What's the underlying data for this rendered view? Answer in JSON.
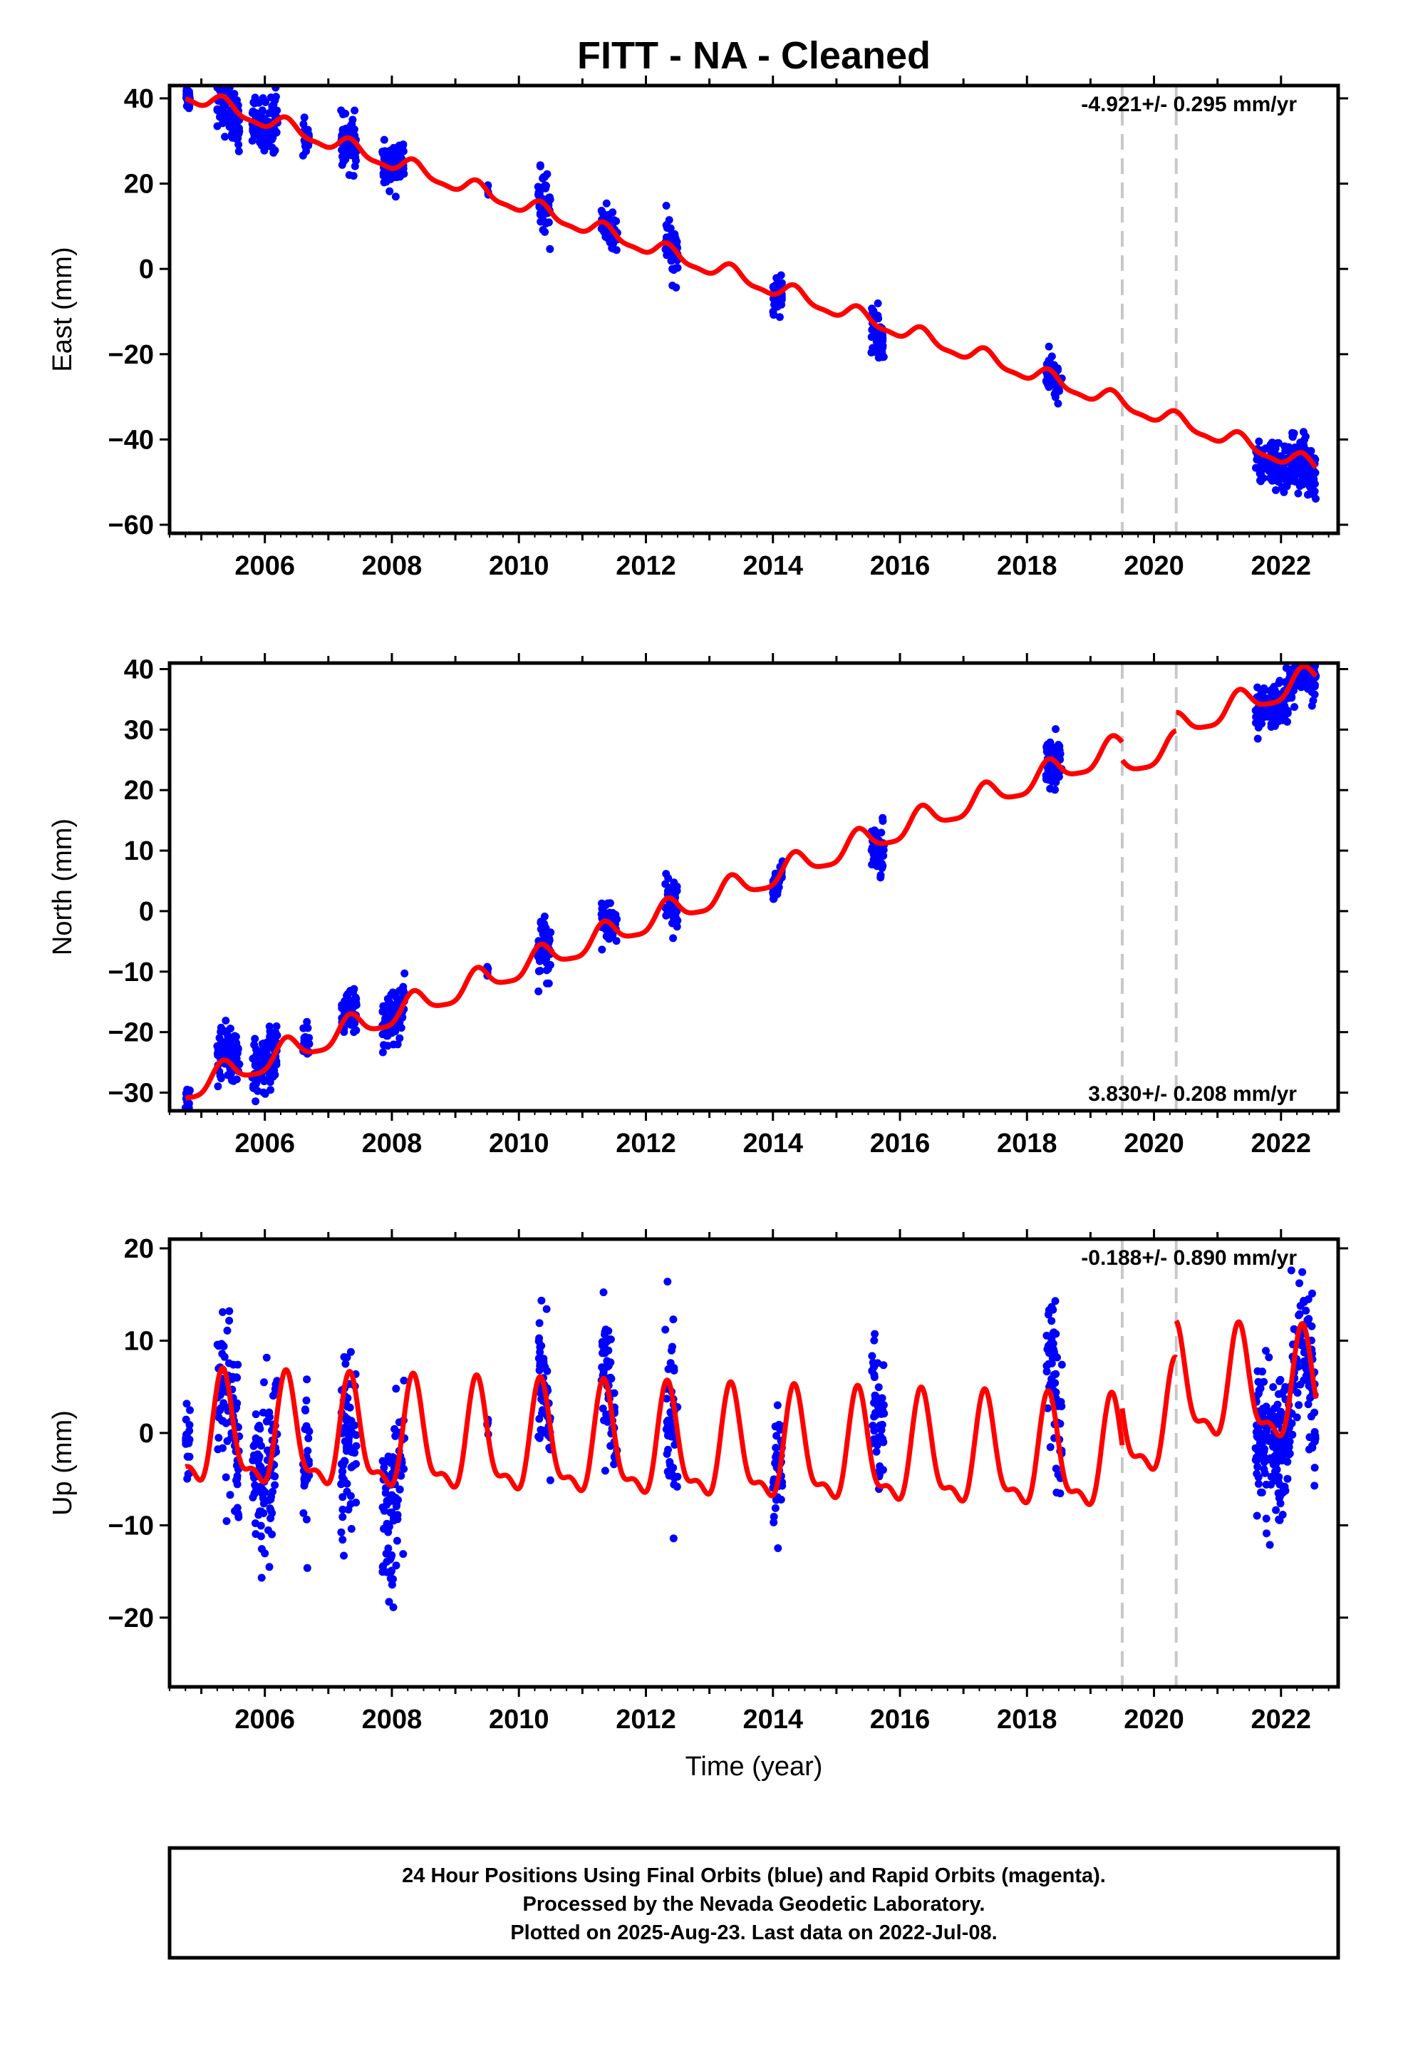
{
  "title": "FITT  - NA - Cleaned",
  "x_axis_label": "Time (year)",
  "footer": {
    "line1": "24 Hour Positions Using Final Orbits (blue) and Rapid Orbits (magenta).",
    "line2": "Processed by the Nevada Geodetic Laboratory.",
    "line3": "Plotted on 2025-Aug-23. Last data on 2022-Jul-08."
  },
  "colors": {
    "data": "#0000ff",
    "model": "#ff0000",
    "breaks": "#c8c8c8",
    "frame": "#000000"
  },
  "chart_data": [
    {
      "type": "scatter",
      "component": "east",
      "ylabel": "East (mm)",
      "rate_text": "-4.921+/- 0.295 mm/yr",
      "xlim": [
        2004.5,
        2022.9
      ],
      "ylim": [
        -62,
        43
      ],
      "xticks": [
        2006,
        2008,
        2010,
        2012,
        2014,
        2016,
        2018,
        2020,
        2022
      ],
      "yticks": [
        -60,
        -40,
        -20,
        0,
        20,
        40
      ],
      "break_lines": [
        2019.5,
        2020.35
      ],
      "model": {
        "intercept": 41.0,
        "rate": -4.921,
        "ref_year": 2004.75,
        "annual_amp": 1.8,
        "semiannual_amp": 0.6,
        "break_offsets": []
      },
      "data_segments": [
        {
          "t0": 2004.75,
          "t1": 2004.82,
          "offset": 0.5,
          "scatter": 1.5
        },
        {
          "t0": 2005.25,
          "t1": 2005.6,
          "offset": -2.0,
          "scatter": 3.0
        },
        {
          "t0": 2005.8,
          "t1": 2006.2,
          "offset": 0.0,
          "scatter": 3.0
        },
        {
          "t0": 2006.6,
          "t1": 2006.7,
          "offset": 0.5,
          "scatter": 1.5
        },
        {
          "t0": 2007.2,
          "t1": 2007.45,
          "offset": -1.0,
          "scatter": 3.0
        },
        {
          "t0": 2007.85,
          "t1": 2008.2,
          "offset": 0.5,
          "scatter": 2.5
        },
        {
          "t0": 2009.5,
          "t1": 2009.52,
          "offset": 0.5,
          "scatter": 0.5
        },
        {
          "t0": 2010.3,
          "t1": 2010.5,
          "offset": 0.0,
          "scatter": 3.5
        },
        {
          "t0": 2011.3,
          "t1": 2011.55,
          "offset": -0.5,
          "scatter": 2.5
        },
        {
          "t0": 2012.3,
          "t1": 2012.5,
          "offset": -0.5,
          "scatter": 3.0
        },
        {
          "t0": 2014.0,
          "t1": 2014.15,
          "offset": -1.0,
          "scatter": 2.0
        },
        {
          "t0": 2015.55,
          "t1": 2015.75,
          "offset": -2.0,
          "scatter": 3.0
        },
        {
          "t0": 2018.3,
          "t1": 2018.55,
          "offset": -1.0,
          "scatter": 2.0
        },
        {
          "t0": 2021.6,
          "t1": 2022.55,
          "offset": -1.5,
          "scatter": 2.8
        }
      ]
    },
    {
      "type": "scatter",
      "component": "north",
      "ylabel": "North (mm)",
      "rate_text": "3.830+/- 0.208 mm/yr",
      "xlim": [
        2004.5,
        2022.9
      ],
      "ylim": [
        -33,
        41
      ],
      "xticks": [
        2006,
        2008,
        2010,
        2012,
        2014,
        2016,
        2018,
        2020,
        2022
      ],
      "yticks": [
        -30,
        -20,
        -10,
        0,
        10,
        20,
        30,
        40
      ],
      "break_lines": [
        2019.5,
        2020.35
      ],
      "model": {
        "intercept": -29.5,
        "rate": 3.83,
        "ref_year": 2004.75,
        "annual_amp": 2.1,
        "semiannual_amp": 0.5,
        "break_offsets": [
          [
            2019.5,
            -3.0
          ],
          [
            2020.35,
            3.0
          ]
        ]
      },
      "data_segments": [
        {
          "t0": 2004.75,
          "t1": 2004.82,
          "offset": -0.5,
          "scatter": 1.5
        },
        {
          "t0": 2005.25,
          "t1": 2005.6,
          "offset": 1.0,
          "scatter": 2.5
        },
        {
          "t0": 2005.8,
          "t1": 2006.2,
          "offset": 0.5,
          "scatter": 2.5
        },
        {
          "t0": 2006.6,
          "t1": 2006.7,
          "offset": 1.5,
          "scatter": 1.5
        },
        {
          "t0": 2007.2,
          "t1": 2007.45,
          "offset": 1.0,
          "scatter": 1.5
        },
        {
          "t0": 2007.85,
          "t1": 2008.2,
          "offset": 0.5,
          "scatter": 2.0
        },
        {
          "t0": 2009.5,
          "t1": 2009.52,
          "offset": 0.5,
          "scatter": 0.5
        },
        {
          "t0": 2010.3,
          "t1": 2010.5,
          "offset": -0.5,
          "scatter": 2.5
        },
        {
          "t0": 2011.3,
          "t1": 2011.55,
          "offset": 0.5,
          "scatter": 1.5
        },
        {
          "t0": 2012.3,
          "t1": 2012.5,
          "offset": -0.5,
          "scatter": 2.0
        },
        {
          "t0": 2014.0,
          "t1": 2014.15,
          "offset": -1.0,
          "scatter": 1.2
        },
        {
          "t0": 2015.55,
          "t1": 2015.75,
          "offset": -1.0,
          "scatter": 2.0
        },
        {
          "t0": 2018.3,
          "t1": 2018.55,
          "offset": 0.0,
          "scatter": 2.0
        },
        {
          "t0": 2021.6,
          "t1": 2022.55,
          "offset": -1.0,
          "scatter": 2.0
        }
      ]
    },
    {
      "type": "scatter",
      "component": "up",
      "ylabel": "Up (mm)",
      "rate_text": "-0.188+/- 0.890 mm/yr",
      "xlim": [
        2004.5,
        2022.9
      ],
      "ylim": [
        -27.5,
        21
      ],
      "xticks": [
        2006,
        2008,
        2010,
        2012,
        2014,
        2016,
        2018,
        2020,
        2022
      ],
      "yticks": [
        -20,
        -10,
        0,
        10,
        20
      ],
      "break_lines": [
        2019.5,
        2020.35
      ],
      "model": {
        "intercept": -0.5,
        "rate": -0.188,
        "ref_year": 2004.75,
        "annual_amp": 5.5,
        "semiannual_amp": 2.2,
        "break_offsets": [
          [
            2019.5,
            4.0
          ],
          [
            2020.35,
            4.0
          ]
        ]
      },
      "data_segments": [
        {
          "t0": 2004.75,
          "t1": 2004.82,
          "offset": 3.0,
          "scatter": 2.5
        },
        {
          "t0": 2005.25,
          "t1": 2005.6,
          "offset": -2.0,
          "scatter": 4.5
        },
        {
          "t0": 2005.8,
          "t1": 2006.2,
          "offset": -1.0,
          "scatter": 4.5
        },
        {
          "t0": 2006.6,
          "t1": 2006.7,
          "offset": 1.0,
          "scatter": 3.5
        },
        {
          "t0": 2007.2,
          "t1": 2007.45,
          "offset": -6.0,
          "scatter": 4.5
        },
        {
          "t0": 2007.85,
          "t1": 2008.2,
          "offset": -2.0,
          "scatter": 4.5
        },
        {
          "t0": 2009.5,
          "t1": 2009.52,
          "offset": 1.0,
          "scatter": 0.5
        },
        {
          "t0": 2010.3,
          "t1": 2010.5,
          "offset": 0.0,
          "scatter": 3.5
        },
        {
          "t0": 2011.3,
          "t1": 2011.55,
          "offset": 2.0,
          "scatter": 3.5
        },
        {
          "t0": 2012.3,
          "t1": 2012.5,
          "offset": -3.0,
          "scatter": 5.0
        },
        {
          "t0": 2014.0,
          "t1": 2014.15,
          "offset": 1.0,
          "scatter": 4.0
        },
        {
          "t0": 2015.55,
          "t1": 2015.75,
          "offset": 7.0,
          "scatter": 4.0
        },
        {
          "t0": 2018.3,
          "t1": 2018.55,
          "offset": 3.5,
          "scatter": 3.5
        },
        {
          "t0": 2021.6,
          "t1": 2022.55,
          "offset": -2.0,
          "scatter": 4.0
        }
      ]
    }
  ]
}
